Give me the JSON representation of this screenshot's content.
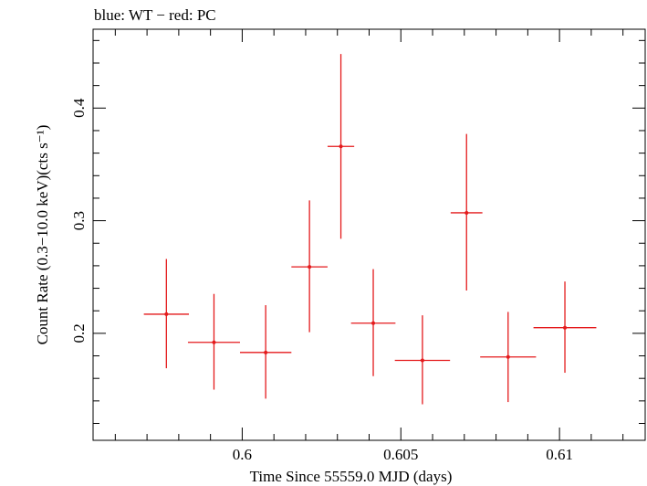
{
  "chart_data": {
    "type": "scatter",
    "title": "blue: WT − red: PC",
    "xlabel": "Time Since 55559.0 MJD (days)",
    "ylabel": "Count Rate (0.3−10.0 keV)(cts s⁻¹)",
    "xlim": [
      0.5953,
      0.6127
    ],
    "ylim": [
      0.105,
      0.47
    ],
    "x_ticks": [
      0.6,
      0.605,
      0.61
    ],
    "x_tick_labels": [
      "0.6",
      "0.605",
      "0.61"
    ],
    "y_ticks": [
      0.2,
      0.3,
      0.4
    ],
    "y_tick_labels": [
      "0.2",
      "0.3",
      "0.4"
    ],
    "grid": false,
    "series": [
      {
        "color": "#e41a1c",
        "points": [
          {
            "x": 0.59761,
            "xerr": 0.00071,
            "y": 0.217,
            "yerr_low": 0.048,
            "yerr_high": 0.049
          },
          {
            "x": 0.59911,
            "xerr": 0.00082,
            "y": 0.192,
            "yerr_low": 0.042,
            "yerr_high": 0.043
          },
          {
            "x": 0.60074,
            "xerr": 0.00081,
            "y": 0.183,
            "yerr_low": 0.041,
            "yerr_high": 0.042
          },
          {
            "x": 0.60212,
            "xerr": 0.00057,
            "y": 0.259,
            "yerr_low": 0.058,
            "yerr_high": 0.059
          },
          {
            "x": 0.60311,
            "xerr": 0.00042,
            "y": 0.366,
            "yerr_low": 0.082,
            "yerr_high": 0.082
          },
          {
            "x": 0.60413,
            "xerr": 0.0007,
            "y": 0.209,
            "yerr_low": 0.047,
            "yerr_high": 0.048
          },
          {
            "x": 0.60568,
            "xerr": 0.00087,
            "y": 0.176,
            "yerr_low": 0.039,
            "yerr_high": 0.04
          },
          {
            "x": 0.60707,
            "xerr": 0.0005,
            "y": 0.307,
            "yerr_low": 0.069,
            "yerr_high": 0.07
          },
          {
            "x": 0.60838,
            "xerr": 0.00088,
            "y": 0.179,
            "yerr_low": 0.04,
            "yerr_high": 0.04
          },
          {
            "x": 0.61017,
            "xerr": 0.00099,
            "y": 0.205,
            "yerr_low": 0.04,
            "yerr_high": 0.041
          }
        ]
      }
    ]
  }
}
